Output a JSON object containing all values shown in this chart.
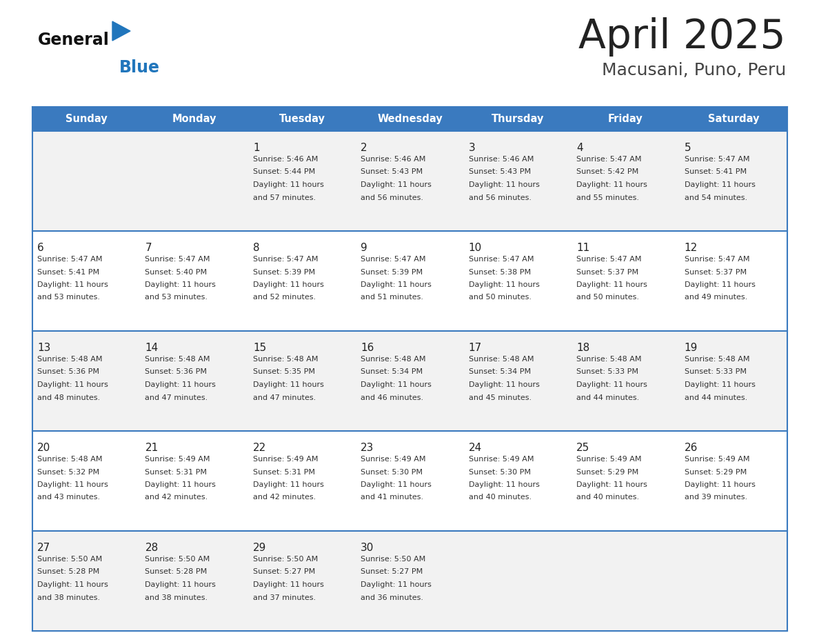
{
  "title": "April 2025",
  "subtitle": "Macusani, Puno, Peru",
  "header_bg": "#3a7abf",
  "header_text": "#ffffff",
  "day_names": [
    "Sunday",
    "Monday",
    "Tuesday",
    "Wednesday",
    "Thursday",
    "Friday",
    "Saturday"
  ],
  "row_bg_light": "#f2f2f2",
  "row_bg_white": "#ffffff",
  "cell_border_color": "#3a7abf",
  "date_color": "#222222",
  "info_color": "#333333",
  "logo_general_color": "#111111",
  "logo_blue_color": "#2176bc",
  "title_color": "#222222",
  "subtitle_color": "#444444",
  "weeks": [
    [
      {
        "day": "",
        "sunrise": "",
        "sunset": "",
        "daylight_min": ""
      },
      {
        "day": "",
        "sunrise": "",
        "sunset": "",
        "daylight_min": ""
      },
      {
        "day": "1",
        "sunrise": "5:46 AM",
        "sunset": "5:44 PM",
        "daylight_min": "57"
      },
      {
        "day": "2",
        "sunrise": "5:46 AM",
        "sunset": "5:43 PM",
        "daylight_min": "56"
      },
      {
        "day": "3",
        "sunrise": "5:46 AM",
        "sunset": "5:43 PM",
        "daylight_min": "56"
      },
      {
        "day": "4",
        "sunrise": "5:47 AM",
        "sunset": "5:42 PM",
        "daylight_min": "55"
      },
      {
        "day": "5",
        "sunrise": "5:47 AM",
        "sunset": "5:41 PM",
        "daylight_min": "54"
      }
    ],
    [
      {
        "day": "6",
        "sunrise": "5:47 AM",
        "sunset": "5:41 PM",
        "daylight_min": "53"
      },
      {
        "day": "7",
        "sunrise": "5:47 AM",
        "sunset": "5:40 PM",
        "daylight_min": "53"
      },
      {
        "day": "8",
        "sunrise": "5:47 AM",
        "sunset": "5:39 PM",
        "daylight_min": "52"
      },
      {
        "day": "9",
        "sunrise": "5:47 AM",
        "sunset": "5:39 PM",
        "daylight_min": "51"
      },
      {
        "day": "10",
        "sunrise": "5:47 AM",
        "sunset": "5:38 PM",
        "daylight_min": "50"
      },
      {
        "day": "11",
        "sunrise": "5:47 AM",
        "sunset": "5:37 PM",
        "daylight_min": "50"
      },
      {
        "day": "12",
        "sunrise": "5:47 AM",
        "sunset": "5:37 PM",
        "daylight_min": "49"
      }
    ],
    [
      {
        "day": "13",
        "sunrise": "5:48 AM",
        "sunset": "5:36 PM",
        "daylight_min": "48"
      },
      {
        "day": "14",
        "sunrise": "5:48 AM",
        "sunset": "5:36 PM",
        "daylight_min": "47"
      },
      {
        "day": "15",
        "sunrise": "5:48 AM",
        "sunset": "5:35 PM",
        "daylight_min": "47"
      },
      {
        "day": "16",
        "sunrise": "5:48 AM",
        "sunset": "5:34 PM",
        "daylight_min": "46"
      },
      {
        "day": "17",
        "sunrise": "5:48 AM",
        "sunset": "5:34 PM",
        "daylight_min": "45"
      },
      {
        "day": "18",
        "sunrise": "5:48 AM",
        "sunset": "5:33 PM",
        "daylight_min": "44"
      },
      {
        "day": "19",
        "sunrise": "5:48 AM",
        "sunset": "5:33 PM",
        "daylight_min": "44"
      }
    ],
    [
      {
        "day": "20",
        "sunrise": "5:48 AM",
        "sunset": "5:32 PM",
        "daylight_min": "43"
      },
      {
        "day": "21",
        "sunrise": "5:49 AM",
        "sunset": "5:31 PM",
        "daylight_min": "42"
      },
      {
        "day": "22",
        "sunrise": "5:49 AM",
        "sunset": "5:31 PM",
        "daylight_min": "42"
      },
      {
        "day": "23",
        "sunrise": "5:49 AM",
        "sunset": "5:30 PM",
        "daylight_min": "41"
      },
      {
        "day": "24",
        "sunrise": "5:49 AM",
        "sunset": "5:30 PM",
        "daylight_min": "40"
      },
      {
        "day": "25",
        "sunrise": "5:49 AM",
        "sunset": "5:29 PM",
        "daylight_min": "40"
      },
      {
        "day": "26",
        "sunrise": "5:49 AM",
        "sunset": "5:29 PM",
        "daylight_min": "39"
      }
    ],
    [
      {
        "day": "27",
        "sunrise": "5:50 AM",
        "sunset": "5:28 PM",
        "daylight_min": "38"
      },
      {
        "day": "28",
        "sunrise": "5:50 AM",
        "sunset": "5:28 PM",
        "daylight_min": "38"
      },
      {
        "day": "29",
        "sunrise": "5:50 AM",
        "sunset": "5:27 PM",
        "daylight_min": "37"
      },
      {
        "day": "30",
        "sunrise": "5:50 AM",
        "sunset": "5:27 PM",
        "daylight_min": "36"
      },
      {
        "day": "",
        "sunrise": "",
        "sunset": "",
        "daylight_min": ""
      },
      {
        "day": "",
        "sunrise": "",
        "sunset": "",
        "daylight_min": ""
      },
      {
        "day": "",
        "sunrise": "",
        "sunset": "",
        "daylight_min": ""
      }
    ]
  ]
}
